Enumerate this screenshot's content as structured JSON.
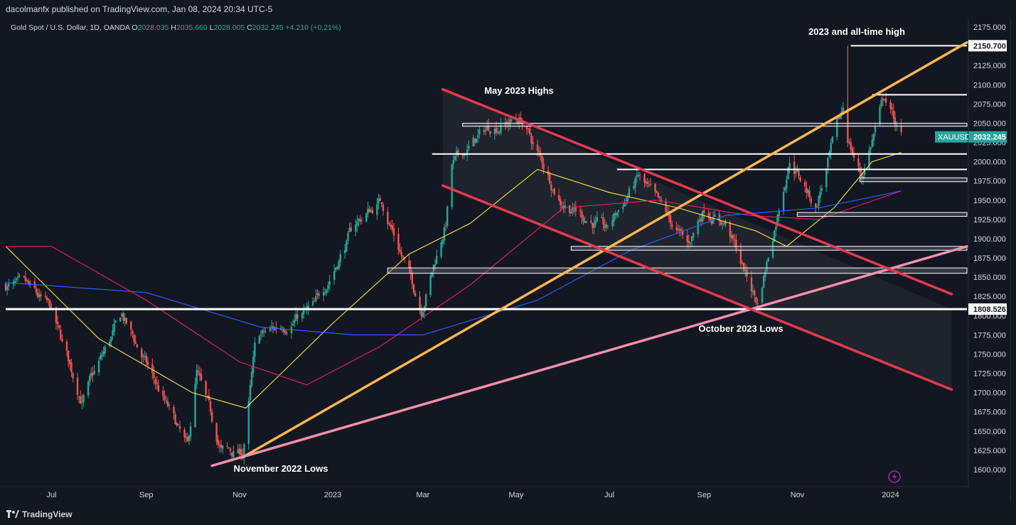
{
  "header": {
    "published": "dacolmanfx published on TradingView.com, Jan 08, 2024 20:34 UTC-5"
  },
  "legend": {
    "symbol": "Gold Spot / U.S. Dollar, 1D, OANDA",
    "o_label": "O",
    "o": "2028.035",
    "h_label": "H",
    "h": "2035.660",
    "l_label": "L",
    "l": "2028.005",
    "c_label": "C",
    "c": "2032.245",
    "change": "+4.210 (+0.21%)"
  },
  "footer": {
    "brand": "TradingView"
  },
  "icons": {
    "logo": "tradingview-logo-icon",
    "flash": "flash-icon"
  },
  "colors": {
    "background": "#131722",
    "up": "#26a69a",
    "down": "#ef5350",
    "ma_yellow": "#f0e442",
    "ma_magenta": "#e91e63",
    "ma_blue": "#2962ff",
    "trend_orange": "#ffb74d",
    "trend_red": "#e53950",
    "trend_pink": "#f48fb1",
    "price_label": "#26a69a"
  },
  "chart_data": {
    "type": "candlestick",
    "title": "Gold Spot / U.S. Dollar, 1D, OANDA",
    "symbol": "XAUUSD",
    "last_price": "2032.245",
    "price_tags": [
      "2150.700",
      "1808.526"
    ],
    "y_ticks": [
      "2175.000",
      "2150.000",
      "2125.000",
      "2100.000",
      "2075.000",
      "2050.000",
      "2025.000",
      "2000.000",
      "1975.000",
      "1950.000",
      "1925.000",
      "1900.000",
      "1875.000",
      "1850.000",
      "1825.000",
      "1800.000",
      "1775.000",
      "1750.000",
      "1725.000",
      "1700.000",
      "1675.000",
      "1650.000",
      "1625.000",
      "1600.000"
    ],
    "ylim": [
      1600,
      2175
    ],
    "x_ticks": [
      "Jul",
      "Sep",
      "Nov",
      "2023",
      "Mar",
      "May",
      "Jul",
      "Sep",
      "Nov",
      "2024"
    ],
    "x_range": [
      "2022-06-01",
      "2024-02-20"
    ],
    "annotations": [
      "2023 and all-time high",
      "May 2023 Highs",
      "October 2023 Lows",
      "November 2022 Lows"
    ],
    "horizontal_levels": [
      2150.7,
      2087,
      2010,
      1990,
      1808.5
    ],
    "support_zones": [
      [
        2046,
        2050
      ],
      [
        1974,
        1979
      ],
      [
        1929,
        1934
      ],
      [
        1885,
        1890
      ],
      [
        1855,
        1862
      ]
    ],
    "price_path": [
      [
        "2022-06-01",
        1840
      ],
      [
        "2022-06-15",
        1835
      ],
      [
        "2022-06-30",
        1808
      ],
      [
        "2022-07-21",
        1690
      ],
      [
        "2022-08-16",
        1800
      ],
      [
        "2022-09-05",
        1720
      ],
      [
        "2022-09-28",
        1625
      ],
      [
        "2022-10-04",
        1725
      ],
      [
        "2022-10-20",
        1625
      ],
      [
        "2022-11-03",
        1620
      ],
      [
        "2022-11-12",
        1770
      ],
      [
        "2022-12-20",
        1810
      ],
      [
        "2023-01-16",
        1920
      ],
      [
        "2023-02-02",
        1950
      ],
      [
        "2023-02-28",
        1810
      ],
      [
        "2023-03-16",
        1920
      ],
      [
        "2023-03-20",
        1995
      ],
      [
        "2023-04-13",
        2045
      ],
      [
        "2023-05-04",
        2055
      ],
      [
        "2023-05-30",
        1950
      ],
      [
        "2023-06-29",
        1910
      ],
      [
        "2023-07-20",
        1980
      ],
      [
        "2023-08-21",
        1890
      ],
      [
        "2023-09-01",
        1940
      ],
      [
        "2023-09-15",
        1920
      ],
      [
        "2023-10-06",
        1815
      ],
      [
        "2023-10-27",
        2005
      ],
      [
        "2023-11-13",
        1940
      ],
      [
        "2023-12-01",
        2070
      ],
      [
        "2023-12-04",
        2030
      ],
      [
        "2023-12-13",
        1980
      ],
      [
        "2023-12-28",
        2085
      ],
      [
        "2024-01-08",
        2032
      ]
    ],
    "moving_averages": [
      {
        "color": "#f0e442",
        "points": [
          [
            "2022-06-01",
            1890
          ],
          [
            "2022-08-01",
            1770
          ],
          [
            "2022-10-01",
            1700
          ],
          [
            "2022-11-05",
            1680
          ],
          [
            "2023-01-01",
            1790
          ],
          [
            "2023-02-20",
            1880
          ],
          [
            "2023-04-01",
            1920
          ],
          [
            "2023-05-15",
            1990
          ],
          [
            "2023-07-01",
            1960
          ],
          [
            "2023-08-15",
            1940
          ],
          [
            "2023-10-05",
            1910
          ],
          [
            "2023-10-25",
            1890
          ],
          [
            "2023-11-25",
            1940
          ],
          [
            "2023-12-20",
            2000
          ],
          [
            "2024-01-08",
            2012
          ]
        ]
      },
      {
        "color": "#e91e63",
        "points": [
          [
            "2022-06-01",
            1890
          ],
          [
            "2022-07-01",
            1890
          ],
          [
            "2022-09-01",
            1820
          ],
          [
            "2022-11-01",
            1740
          ],
          [
            "2022-12-15",
            1710
          ],
          [
            "2023-02-01",
            1760
          ],
          [
            "2023-04-01",
            1840
          ],
          [
            "2023-06-01",
            1940
          ],
          [
            "2023-08-01",
            1950
          ],
          [
            "2023-10-01",
            1930
          ],
          [
            "2023-11-15",
            1925
          ],
          [
            "2024-01-08",
            1962
          ]
        ]
      },
      {
        "color": "#2962ff",
        "points": [
          [
            "2022-06-01",
            1843
          ],
          [
            "2022-09-01",
            1830
          ],
          [
            "2022-11-15",
            1785
          ],
          [
            "2023-01-15",
            1775
          ],
          [
            "2023-03-01",
            1775
          ],
          [
            "2023-05-15",
            1820
          ],
          [
            "2023-07-15",
            1885
          ],
          [
            "2023-09-15",
            1930
          ],
          [
            "2023-11-15",
            1940
          ],
          [
            "2024-01-08",
            1962
          ]
        ]
      }
    ],
    "trendlines": [
      {
        "color": "#ffb74d",
        "from": [
          "2022-11-03",
          1616
        ],
        "to": [
          "2024-02-20",
          2155
        ]
      },
      {
        "color": "#f48fb1",
        "from": [
          "2022-10-14",
          1605
        ],
        "to": [
          "2024-02-20",
          1890
        ]
      },
      {
        "color": "#e53950",
        "from": [
          "2023-03-14",
          2094
        ],
        "to": [
          "2024-02-10",
          1828
        ]
      },
      {
        "color": "#e53950",
        "from": [
          "2023-03-14",
          1969
        ],
        "to": [
          "2024-02-10",
          1704
        ]
      }
    ]
  }
}
